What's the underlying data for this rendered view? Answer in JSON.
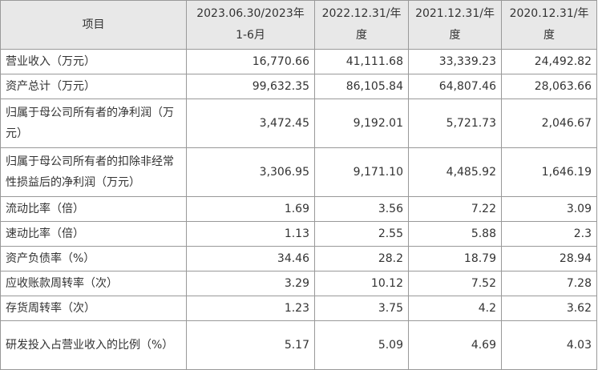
{
  "table": {
    "headers": [
      "项目",
      "2023.06.30/2023年1-6月",
      "2022.12.31/年度",
      "2021.12.31/年度",
      "2020.12.31/年度"
    ],
    "rows": [
      {
        "label": "营业收入（万元）",
        "values": [
          "16,770.66",
          "41,111.68",
          "33,339.23",
          "24,492.82"
        ]
      },
      {
        "label": "资产总计（万元）",
        "values": [
          "99,632.35",
          "86,105.84",
          "64,807.46",
          "28,063.66"
        ]
      },
      {
        "label": "归属于母公司所有者的净利润（万元）",
        "values": [
          "3,472.45",
          "9,192.01",
          "5,721.73",
          "2,046.67"
        ]
      },
      {
        "label": "归属于母公司所有者的扣除非经常性损益后的净利润（万元）",
        "values": [
          "3,306.95",
          "9,171.10",
          "4,485.92",
          "1,646.19"
        ]
      },
      {
        "label": "流动比率（倍）",
        "values": [
          "1.69",
          "3.56",
          "7.22",
          "3.09"
        ]
      },
      {
        "label": "速动比率（倍）",
        "values": [
          "1.13",
          "2.55",
          "5.88",
          "2.3"
        ]
      },
      {
        "label": "资产负债率（%）",
        "values": [
          "34.46",
          "28.2",
          "18.79",
          "28.94"
        ]
      },
      {
        "label": "应收账款周转率（次）",
        "values": [
          "3.29",
          "10.12",
          "7.52",
          "7.28"
        ]
      },
      {
        "label": "存货周转率（次）",
        "values": [
          "1.23",
          "3.75",
          "4.2",
          "3.62"
        ]
      },
      {
        "label": "研发投入占营业收入的比例（%）",
        "values": [
          "5.17",
          "5.09",
          "4.69",
          "4.03"
        ]
      }
    ]
  }
}
